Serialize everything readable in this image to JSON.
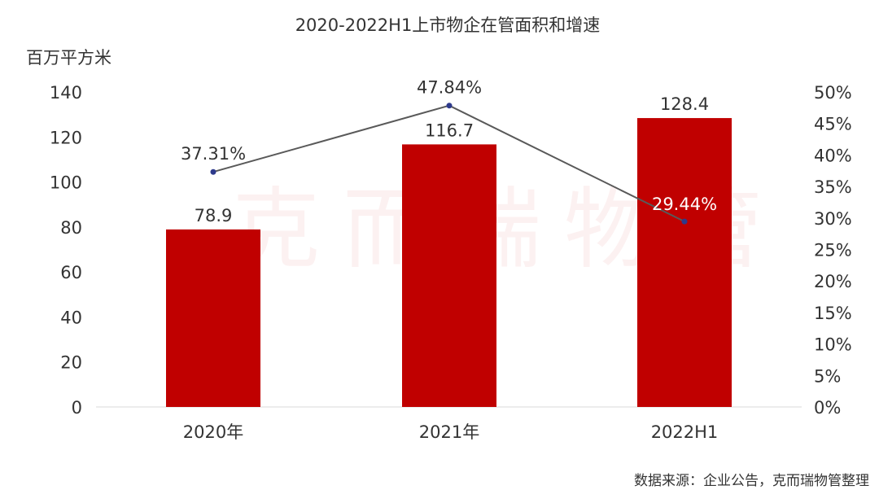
{
  "chart_data": {
    "type": "bar",
    "title": "2020-2022H1上市物企在管面积和增速",
    "categories": [
      "2020年",
      "2021年",
      "2022H1"
    ],
    "ylabel": "百万平方米",
    "ylim": [
      0,
      140
    ],
    "y_ticks": [
      "0",
      "20",
      "40",
      "60",
      "80",
      "100",
      "120",
      "140"
    ],
    "y2lim": [
      0,
      50
    ],
    "y2_ticks": [
      "0%",
      "5%",
      "10%",
      "15%",
      "20%",
      "25%",
      "30%",
      "35%",
      "40%",
      "45%",
      "50%"
    ],
    "series": [
      {
        "type": "bar",
        "axis": "left",
        "values": [
          78.9,
          116.7,
          128.4
        ],
        "labels": [
          "78.9",
          "116.7",
          "128.4"
        ]
      },
      {
        "type": "line",
        "axis": "right",
        "values": [
          37.31,
          47.84,
          29.44
        ],
        "labels": [
          "37.31%",
          "47.84%",
          "29.44%"
        ]
      }
    ],
    "grid": false,
    "legend": "none"
  },
  "colors": {
    "bar": "#c00000",
    "line": "#595959",
    "marker": "#2e3a8c",
    "text": "#333333"
  },
  "source": "数据来源：企业公告，克而瑞物管整理",
  "watermark": "克而瑞物管"
}
